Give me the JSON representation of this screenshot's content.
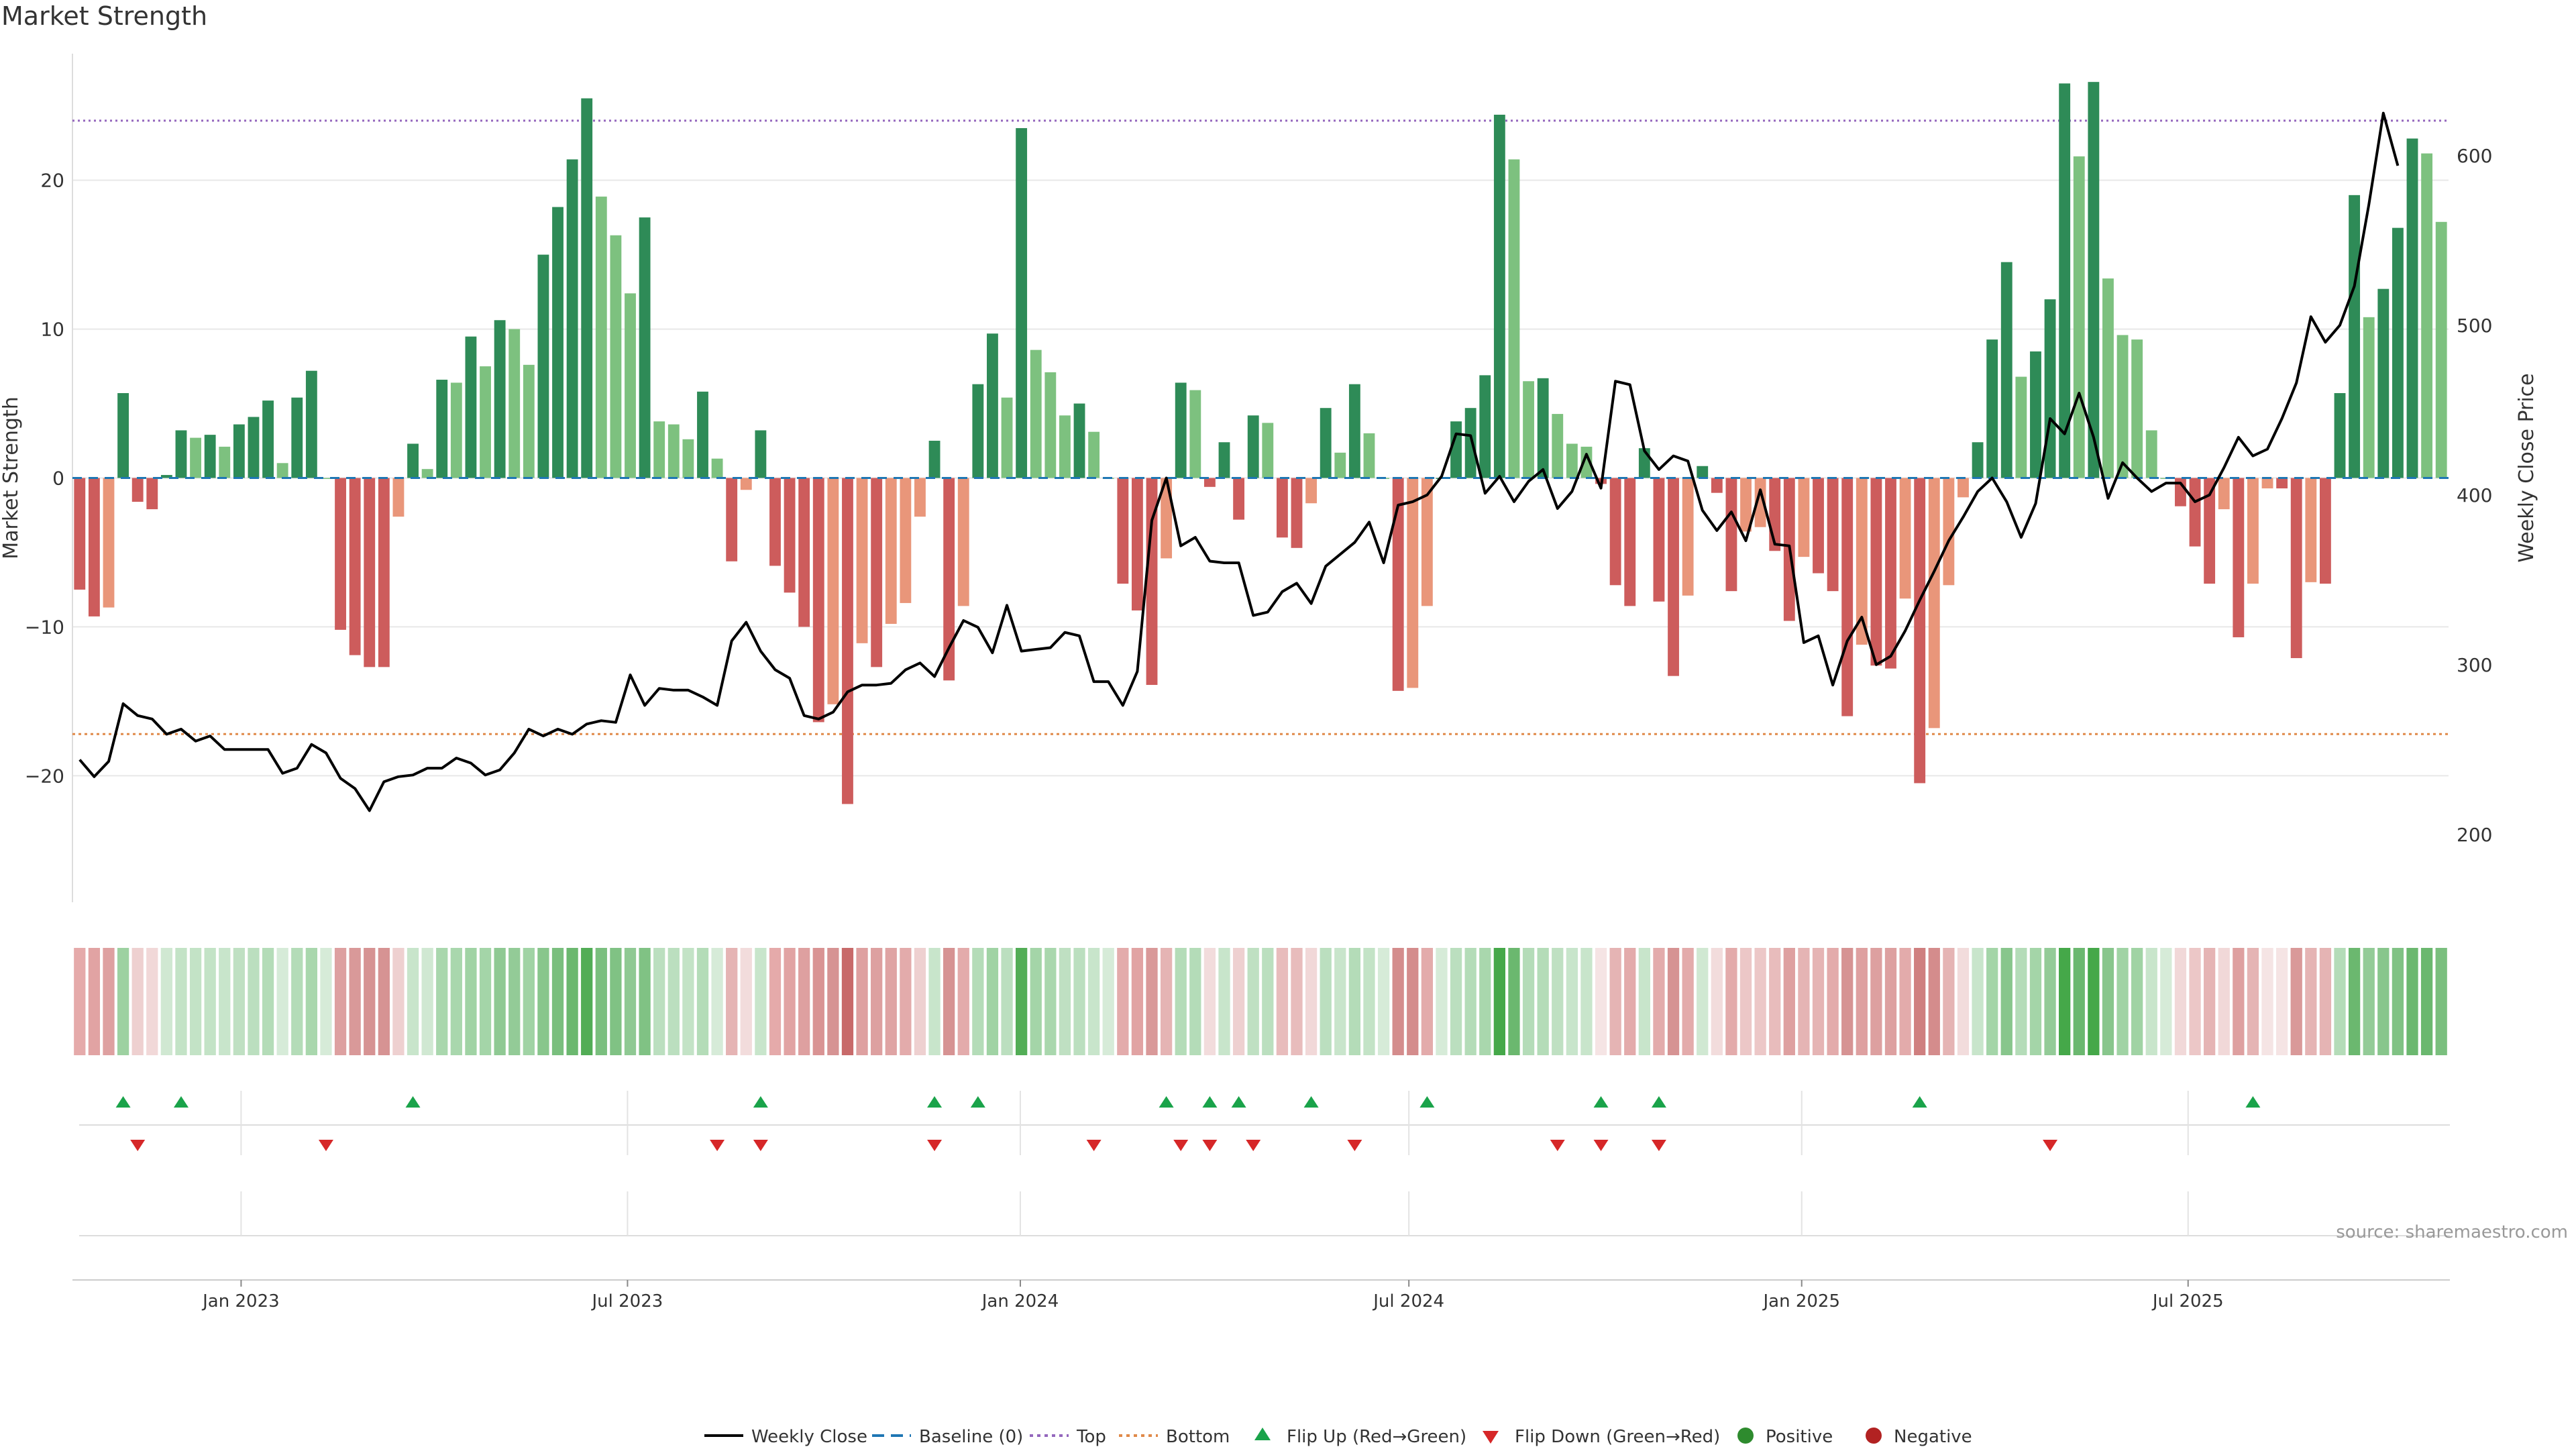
{
  "chart_data": {
    "type": "bar",
    "title": "Market Strength",
    "ylabel_left": "Market Strength",
    "ylabel_right": "Weekly Close Price",
    "source": "source: sharemaestro.com",
    "ylim_left": [
      -28.5,
      28.5
    ],
    "ylim_right": [
      160,
      660
    ],
    "yticks_left": [
      -20,
      -10,
      0,
      10,
      20
    ],
    "yticks_right": [
      200,
      300,
      400,
      500,
      600
    ],
    "top_level": 24,
    "bottom_level": -17.2,
    "date_range": [
      "2022-10-14",
      "2025-10-31"
    ],
    "x_ticks": [
      {
        "date": "2023-01-01",
        "label": "Jan 2023"
      },
      {
        "date": "2023-07-01",
        "label": "Jul 2023"
      },
      {
        "date": "2024-01-01",
        "label": "Jan 2024"
      },
      {
        "date": "2024-07-01",
        "label": "Jul 2024"
      },
      {
        "date": "2025-01-01",
        "label": "Jan 2025"
      },
      {
        "date": "2025-07-01",
        "label": "Jul 2025"
      }
    ],
    "strength": [
      -7.5,
      -9.3,
      -8.7,
      5.7,
      -1.6,
      -2.1,
      0.2,
      3.2,
      2.7,
      2.9,
      2.1,
      3.6,
      4.1,
      5.2,
      1.0,
      5.4,
      7.2,
      0.0,
      -10.2,
      -11.9,
      -12.7,
      -12.7,
      -2.6,
      2.3,
      0.6,
      6.6,
      6.4,
      9.5,
      7.5,
      10.6,
      10.0,
      7.6,
      15.0,
      18.2,
      21.4,
      25.5,
      18.9,
      16.3,
      12.4,
      17.5,
      3.8,
      3.6,
      2.6,
      5.8,
      1.3,
      -5.6,
      -0.8,
      3.2,
      -5.9,
      -7.7,
      -10.0,
      -16.4,
      -15.2,
      -21.9,
      -11.1,
      -12.7,
      -9.8,
      -8.4,
      -2.6,
      2.5,
      -13.6,
      -8.6,
      6.3,
      9.7,
      5.4,
      23.5,
      8.6,
      7.1,
      4.2,
      5.0,
      3.1,
      0.0,
      -7.1,
      -8.9,
      -13.9,
      -5.4,
      6.4,
      5.9,
      -0.6,
      2.4,
      -2.8,
      4.2,
      3.7,
      -4.0,
      -4.7,
      -1.7,
      4.7,
      1.7,
      6.3,
      3.0,
      0.0,
      -14.3,
      -14.1,
      -8.6,
      0.0,
      3.8,
      4.7,
      6.9,
      24.4,
      21.4,
      6.5,
      6.7,
      4.3,
      2.3,
      2.1,
      -0.4,
      -7.2,
      -8.6,
      2.0,
      -8.3,
      -13.3,
      -7.9,
      0.8,
      -1.0,
      -7.6,
      -3.6,
      -3.3,
      -4.9,
      -9.6,
      -5.3,
      -6.4,
      -7.6,
      -16.0,
      -11.2,
      -12.6,
      -12.8,
      -8.1,
      -20.5,
      -16.8,
      -7.2,
      -1.3,
      2.4,
      9.3,
      14.5,
      6.8,
      8.5,
      12.0,
      26.5,
      21.6,
      26.6,
      13.4,
      9.6,
      9.3,
      3.2,
      0.0,
      -1.9,
      -4.6,
      -7.1,
      -2.1,
      -10.7,
      -7.1,
      -0.7,
      -0.7,
      -12.1,
      -7.0,
      -7.1,
      5.7,
      19.0,
      10.8,
      12.7,
      16.8,
      22.8,
      21.8,
      17.2
    ],
    "close": [
      244,
      234,
      243,
      277,
      270,
      268,
      259,
      262,
      255,
      258,
      250,
      250,
      250,
      250,
      236,
      239,
      253,
      248,
      233,
      227,
      214,
      231,
      234,
      235,
      239,
      239,
      245,
      242,
      235,
      238,
      248,
      262,
      258,
      262,
      259,
      265,
      267,
      266,
      294,
      276,
      286,
      285,
      285,
      281,
      276,
      314,
      325,
      308,
      297,
      292,
      270,
      268,
      272,
      284,
      288,
      288,
      289,
      297,
      301,
      293,
      310,
      326,
      322,
      307,
      335,
      308,
      309,
      310,
      319,
      317,
      290,
      290,
      276,
      296,
      385,
      410,
      370,
      375,
      361,
      360,
      360,
      329,
      331,
      343,
      348,
      336,
      358,
      365,
      372,
      384,
      360,
      394,
      396,
      400,
      411,
      436,
      435,
      401,
      411,
      396,
      408,
      415,
      392,
      402,
      424,
      404,
      467,
      465,
      426,
      415,
      423,
      420,
      391,
      379,
      390,
      373,
      403,
      371,
      370,
      313,
      317,
      288,
      314,
      328,
      300,
      305,
      320,
      338,
      355,
      373,
      387,
      402,
      410,
      396,
      375,
      395,
      445,
      436,
      460,
      434,
      398,
      419,
      410,
      402,
      407,
      407,
      396,
      400,
      416,
      434,
      423,
      427,
      445,
      466,
      505,
      490,
      500,
      523,
      571,
      625,
      594
    ],
    "heat_strip": [
      "#e5aaaa",
      "#e1a3a3",
      "#dea0a0",
      "#9dd1a1",
      "#eed0d0",
      "#f1d8d8",
      "#d0e8d2",
      "#c3e3c6",
      "#c3e3c6",
      "#c3e3c6",
      "#c8e5cb",
      "#bfe0c2",
      "#bbdfbf",
      "#b4dcb8",
      "#d6ebd8",
      "#b4dcb8",
      "#a9d7ad",
      "#d6ebd8",
      "#dda0a0",
      "#d99999",
      "#d69393",
      "#d69393",
      "#eed0d0",
      "#c8e5cb",
      "#d0e8d2",
      "#a9d7ad",
      "#a9d7ad",
      "#a0d3a4",
      "#a4d5a8",
      "#8fc993",
      "#93cb97",
      "#a0d3a4",
      "#88c68c",
      "#7abf7e",
      "#6bb86f",
      "#52ad56",
      "#7abf7e",
      "#80c284",
      "#8fc993",
      "#80c284",
      "#bbdfbf",
      "#bbdfbf",
      "#c3e3c6",
      "#b4dcb8",
      "#d6ebd8",
      "#e5b4b4",
      "#f2dcdc",
      "#c8e5cb",
      "#e5aaaa",
      "#e1a3a3",
      "#dea0a0",
      "#d99393",
      "#d69393",
      "#c86a6a",
      "#dea0a0",
      "#dda0a0",
      "#dfa4a4",
      "#e3abab",
      "#eed0d0",
      "#c8e5cb",
      "#d69393",
      "#e3abab",
      "#b4dcb8",
      "#a0d3a4",
      "#bbdfbf",
      "#52ad56",
      "#a4d5a8",
      "#a9d7ad",
      "#bfe0c2",
      "#bbdfbf",
      "#c8e5cb",
      "#d6ebd8",
      "#e3abab",
      "#e1a3a3",
      "#d99999",
      "#e5b4b4",
      "#b4dcb8",
      "#b4dcb8",
      "#f2dcdc",
      "#c8e5cb",
      "#eed0d0",
      "#bfe0c2",
      "#bbdfbf",
      "#e8bcbc",
      "#e8bcbc",
      "#f1d8d8",
      "#bbdfbf",
      "#c8e5cb",
      "#b4dcb8",
      "#c3e3c6",
      "#d6ebd8",
      "#d48c8c",
      "#d48c8c",
      "#e3abab",
      "#d6ebd8",
      "#bbdfbf",
      "#b4dcb8",
      "#a9d7ad",
      "#45a849",
      "#6bb86f",
      "#b4dcb8",
      "#b4dcb8",
      "#bfe0c2",
      "#c8e5cb",
      "#c8e5cb",
      "#f5e4e4",
      "#e5b4b4",
      "#e3abab",
      "#c8e5cb",
      "#e3abab",
      "#d69393",
      "#e3abab",
      "#d0e8d2",
      "#f2dcdc",
      "#e3abab",
      "#ecc7c7",
      "#ecc7c7",
      "#e8bcbc",
      "#dea0a0",
      "#e5b4b4",
      "#e5b4b4",
      "#e3abab",
      "#d69393",
      "#dea0a0",
      "#dda0a0",
      "#dda0a0",
      "#e3abab",
      "#cf7f7f",
      "#d48c8c",
      "#e5b4b4",
      "#f2dcdc",
      "#c8e5cb",
      "#a4d5a8",
      "#88c68c",
      "#b4dcb8",
      "#a4d5a8",
      "#93cb97",
      "#45a849",
      "#6bb86f",
      "#45a849",
      "#88c68c",
      "#a0d3a4",
      "#a0d3a4",
      "#c8e5cb",
      "#d6ebd8",
      "#f1d8d8",
      "#ecc7c7",
      "#e5b4b4",
      "#f1d8d8",
      "#dea0a0",
      "#e5b4b4",
      "#f5e4e4",
      "#f5e4e4",
      "#d99999",
      "#e5b4b4",
      "#e5b4b4",
      "#b4dcb8",
      "#6bb86f",
      "#93cb97",
      "#88c68c",
      "#80c284",
      "#6bb86f",
      "#6bb86f",
      "#7abf7e"
    ],
    "flip_up_weeks": [
      3,
      7,
      23,
      47,
      59,
      62,
      75,
      78,
      80,
      85,
      93,
      105,
      109,
      127,
      150
    ],
    "flip_down_weeks": [
      4,
      17,
      44,
      47,
      59,
      70,
      76,
      78,
      81,
      88,
      102,
      105,
      109,
      136
    ],
    "series_colors": {
      "pos_strong": "#2e8b57",
      "pos_weak": "#7dc17f",
      "neg_strong": "#cd5c5c",
      "neg_weak": "#e9967a",
      "close_line": "#000000",
      "baseline": "#1f77b4",
      "top_line": "#9467bd",
      "bottom_line": "#e08a4a",
      "flip_up": "#1aa34a",
      "flip_down": "#d62728",
      "positive": "#2e8b2e",
      "negative": "#b22222"
    },
    "legend": {
      "weekly_close": "Weekly Close",
      "baseline": "Baseline (0)",
      "top": "Top",
      "bottom": "Bottom",
      "flip_up": "Flip Up (Red→Green)",
      "flip_down": "Flip Down (Green→Red)",
      "positive": "Positive",
      "negative": "Negative"
    }
  }
}
